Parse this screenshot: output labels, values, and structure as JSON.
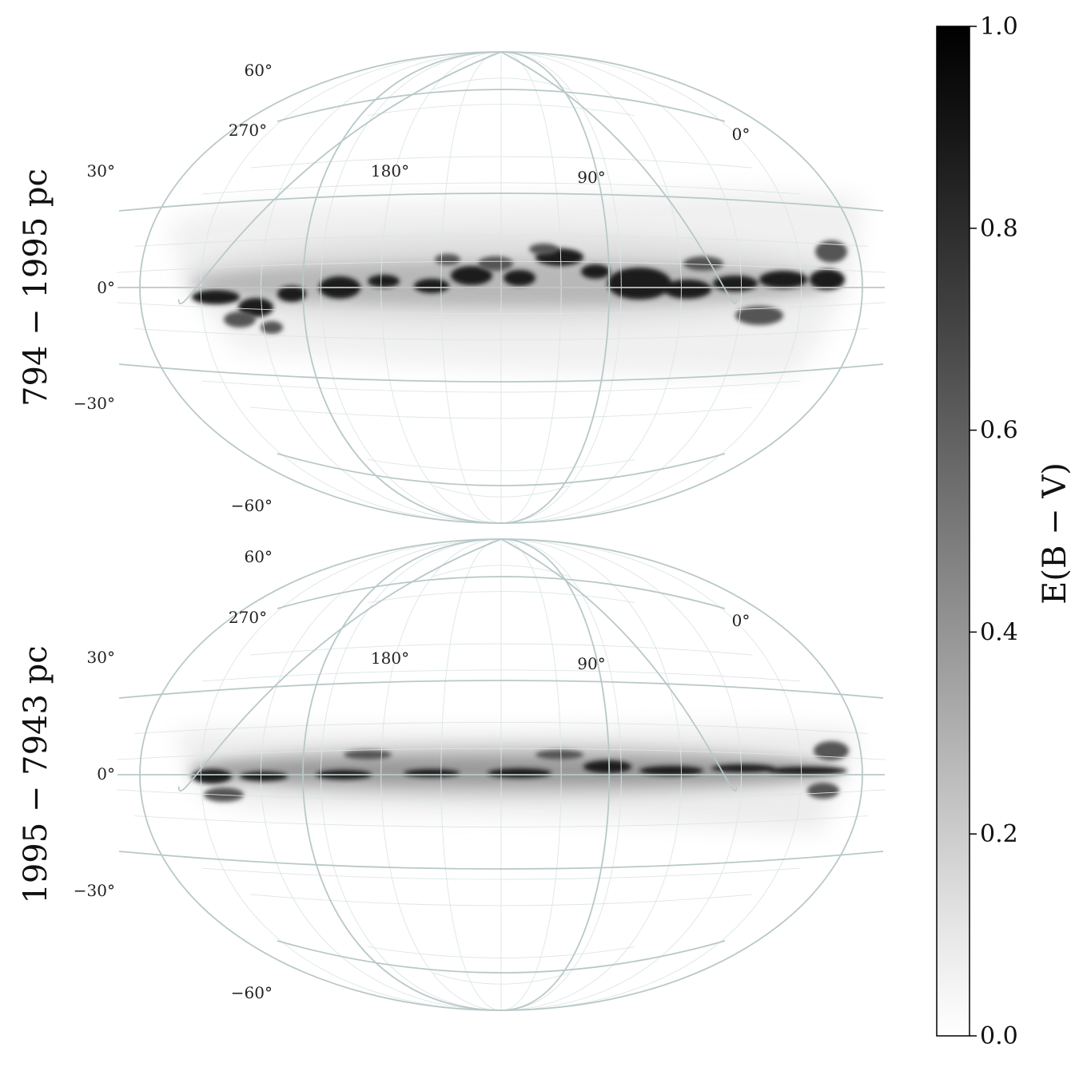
{
  "panels": [
    {
      "id": "top",
      "row_label": "794 − 1995 pc",
      "lat_labels": [
        "60°",
        "30°",
        "0°",
        "−30°",
        "−60°"
      ],
      "lon_labels": [
        "270°",
        "180°",
        "90°",
        "0°"
      ]
    },
    {
      "id": "bottom",
      "row_label": "1995 − 7943 pc",
      "lat_labels": [
        "60°",
        "30°",
        "0°",
        "−30°",
        "−60°"
      ],
      "lon_labels": [
        "270°",
        "180°",
        "90°",
        "0°"
      ]
    }
  ],
  "colorbar": {
    "title": "E(B − V)",
    "ticks": [
      "0.0",
      "0.2",
      "0.4",
      "0.6",
      "0.8",
      "1.0"
    ],
    "range": [
      0.0,
      1.0
    ],
    "tick_values": [
      0.0,
      0.2,
      0.4,
      0.6,
      0.8,
      1.0
    ],
    "colormap": "white-to-black"
  }
}
